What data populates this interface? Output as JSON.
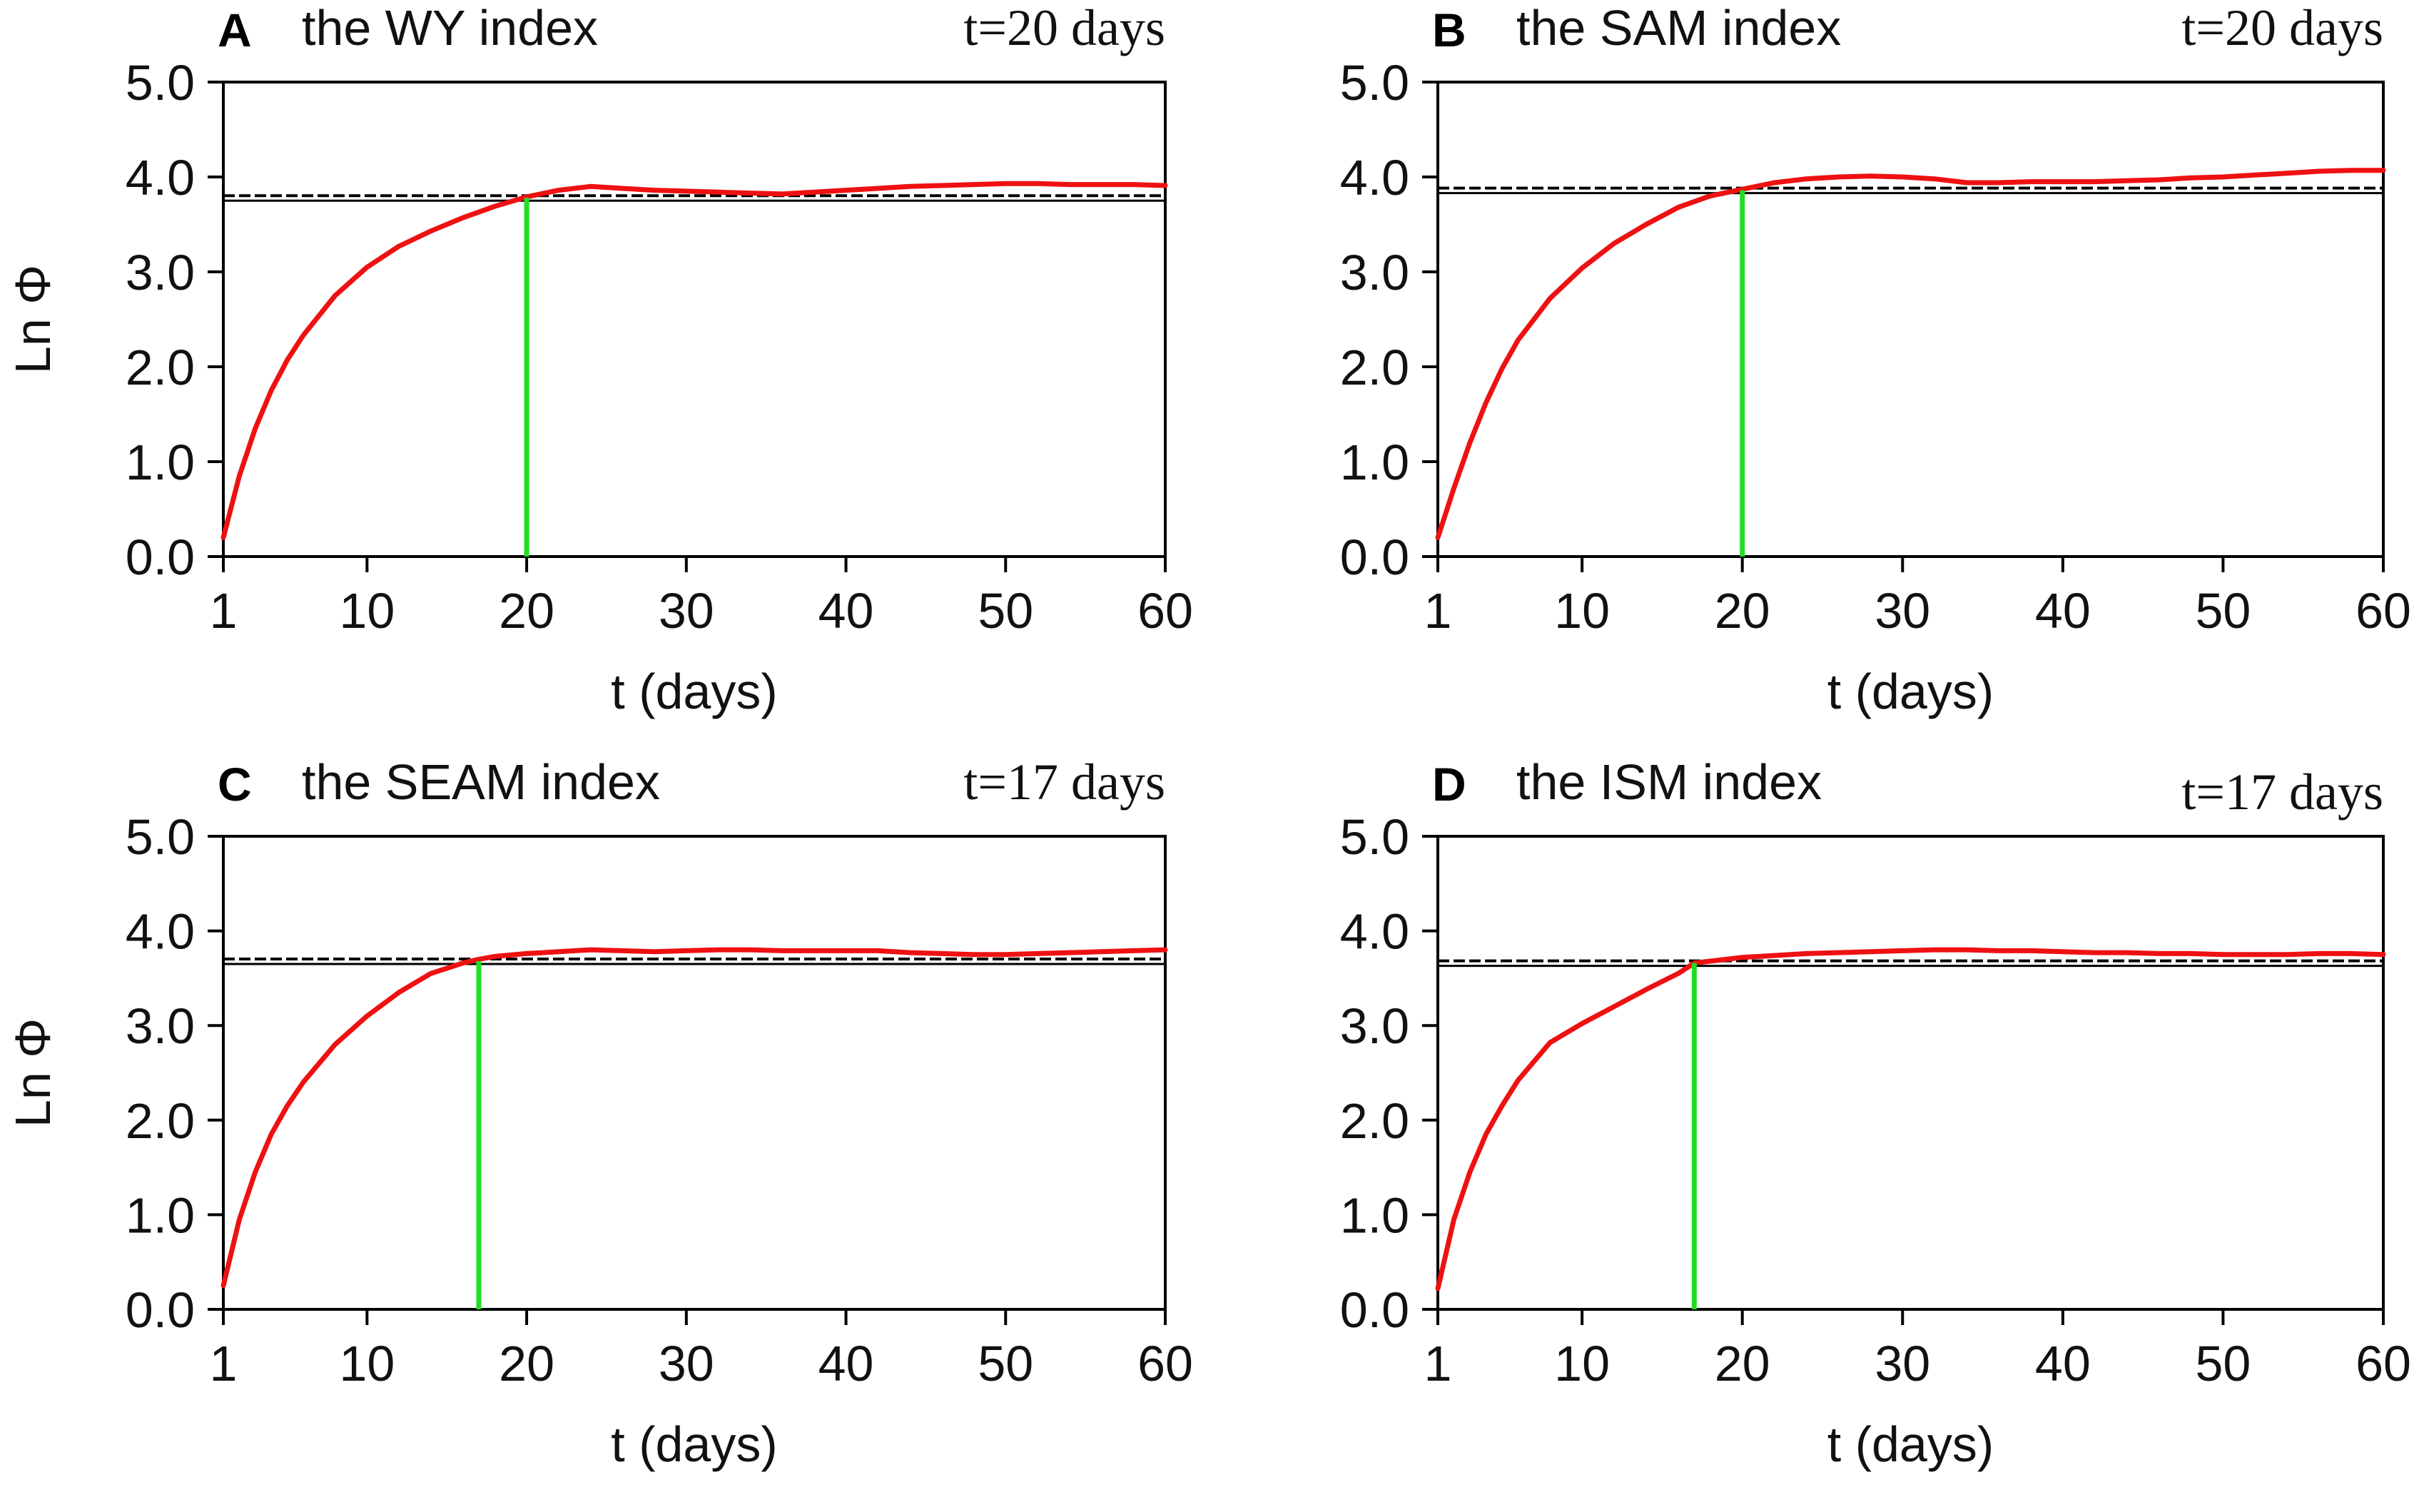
{
  "chart_data": [
    {
      "type": "line",
      "panel": "A",
      "title": "the WY index",
      "annotation": "t=20 days",
      "xlabel": "t (days)",
      "ylabel": "Ln Φ",
      "xlim": [
        1,
        60
      ],
      "ylim": [
        0,
        5
      ],
      "xticks": [
        1,
        10,
        20,
        30,
        40,
        50,
        60
      ],
      "xtick_labels": [
        "1",
        "10",
        "20",
        "30",
        "40",
        "50",
        "60"
      ],
      "yticks": [
        0,
        1,
        2,
        3,
        4,
        5
      ],
      "ytick_labels": [
        "0.0",
        "1.0",
        "2.0",
        "3.0",
        "4.0",
        "5.0"
      ],
      "threshold": 3.78,
      "marker_t": 20,
      "series": [
        {
          "name": "Ln Φ",
          "color": "#ee1111",
          "x": [
            1,
            2,
            3,
            4,
            5,
            6,
            8,
            10,
            12,
            14,
            16,
            18,
            20,
            22,
            24,
            26,
            28,
            30,
            32,
            34,
            36,
            38,
            40,
            42,
            44,
            46,
            48,
            50,
            52,
            54,
            56,
            58,
            60
          ],
          "y": [
            0.2,
            0.85,
            1.35,
            1.75,
            2.07,
            2.33,
            2.75,
            3.05,
            3.27,
            3.43,
            3.57,
            3.69,
            3.79,
            3.86,
            3.9,
            3.88,
            3.86,
            3.85,
            3.84,
            3.83,
            3.82,
            3.84,
            3.86,
            3.88,
            3.9,
            3.91,
            3.92,
            3.93,
            3.93,
            3.92,
            3.92,
            3.92,
            3.91
          ]
        }
      ],
      "vline_color": "#22dd22",
      "hline_color": "#000000"
    },
    {
      "type": "line",
      "panel": "B",
      "title": "the SAM index",
      "annotation": "t=20 days",
      "xlabel": "t (days)",
      "ylabel": "",
      "xlim": [
        1,
        60
      ],
      "ylim": [
        0,
        5
      ],
      "xticks": [
        1,
        10,
        20,
        30,
        40,
        50,
        60
      ],
      "xtick_labels": [
        "1",
        "10",
        "20",
        "30",
        "40",
        "50",
        "60"
      ],
      "yticks": [
        0,
        1,
        2,
        3,
        4,
        5
      ],
      "ytick_labels": [
        "0.0",
        "1.0",
        "2.0",
        "3.0",
        "4.0",
        "5.0"
      ],
      "threshold": 3.86,
      "marker_t": 20,
      "series": [
        {
          "name": "Ln Φ",
          "color": "#ee1111",
          "x": [
            1,
            2,
            3,
            4,
            5,
            6,
            8,
            10,
            12,
            14,
            16,
            18,
            20,
            22,
            24,
            26,
            28,
            30,
            32,
            34,
            36,
            38,
            40,
            42,
            44,
            46,
            48,
            50,
            52,
            54,
            56,
            58,
            60
          ],
          "y": [
            0.2,
            0.72,
            1.2,
            1.62,
            1.98,
            2.28,
            2.72,
            3.04,
            3.3,
            3.5,
            3.68,
            3.8,
            3.87,
            3.94,
            3.98,
            4.0,
            4.01,
            4.0,
            3.98,
            3.94,
            3.94,
            3.95,
            3.95,
            3.95,
            3.96,
            3.97,
            3.99,
            4.0,
            4.02,
            4.04,
            4.06,
            4.07,
            4.07
          ]
        }
      ],
      "vline_color": "#22dd22",
      "hline_color": "#000000"
    },
    {
      "type": "line",
      "panel": "C",
      "title": "the SEAM index",
      "annotation": "t=17 days",
      "xlabel": "t (days)",
      "ylabel": "Ln Φ",
      "xlim": [
        1,
        60
      ],
      "ylim": [
        0,
        5
      ],
      "xticks": [
        1,
        10,
        20,
        30,
        40,
        50,
        60
      ],
      "xtick_labels": [
        "1",
        "10",
        "20",
        "30",
        "40",
        "50",
        "60"
      ],
      "yticks": [
        0,
        1,
        2,
        3,
        4,
        5
      ],
      "ytick_labels": [
        "0.0",
        "1.0",
        "2.0",
        "3.0",
        "4.0",
        "5.0"
      ],
      "threshold": 3.68,
      "marker_t": 17,
      "series": [
        {
          "name": "Ln Φ",
          "color": "#ee1111",
          "x": [
            1,
            2,
            3,
            4,
            5,
            6,
            8,
            10,
            12,
            14,
            16,
            17,
            18,
            20,
            22,
            24,
            26,
            28,
            30,
            32,
            34,
            36,
            38,
            40,
            42,
            44,
            46,
            48,
            50,
            52,
            54,
            56,
            58,
            60
          ],
          "y": [
            0.25,
            0.95,
            1.45,
            1.85,
            2.15,
            2.4,
            2.8,
            3.1,
            3.35,
            3.55,
            3.66,
            3.7,
            3.73,
            3.76,
            3.78,
            3.8,
            3.79,
            3.78,
            3.79,
            3.8,
            3.8,
            3.79,
            3.79,
            3.79,
            3.79,
            3.77,
            3.76,
            3.75,
            3.75,
            3.76,
            3.77,
            3.78,
            3.79,
            3.8
          ]
        }
      ],
      "vline_color": "#22dd22",
      "hline_color": "#000000"
    },
    {
      "type": "line",
      "panel": "D",
      "title": "the ISM index",
      "annotation": "t=17 days",
      "xlabel": "t (days)",
      "ylabel": "",
      "xlim": [
        1,
        60
      ],
      "ylim": [
        0,
        5
      ],
      "xticks": [
        1,
        10,
        20,
        30,
        40,
        50,
        60
      ],
      "xtick_labels": [
        "1",
        "10",
        "20",
        "30",
        "40",
        "50",
        "60"
      ],
      "yticks": [
        0,
        1,
        2,
        3,
        4,
        5
      ],
      "ytick_labels": [
        "0.0",
        "1.0",
        "2.0",
        "3.0",
        "4.0",
        "5.0"
      ],
      "threshold": 3.66,
      "marker_t": 17,
      "series": [
        {
          "name": "Ln Φ",
          "color": "#ee1111",
          "x": [
            1,
            2,
            3,
            4,
            5,
            6,
            8,
            10,
            12,
            14,
            16,
            17,
            18,
            20,
            22,
            24,
            26,
            28,
            30,
            32,
            34,
            36,
            38,
            40,
            42,
            44,
            46,
            48,
            50,
            52,
            54,
            56,
            58,
            60
          ],
          "y": [
            0.22,
            0.95,
            1.45,
            1.85,
            2.15,
            2.42,
            2.82,
            3.02,
            3.2,
            3.38,
            3.55,
            3.66,
            3.68,
            3.72,
            3.74,
            3.76,
            3.77,
            3.78,
            3.79,
            3.8,
            3.8,
            3.79,
            3.79,
            3.78,
            3.77,
            3.77,
            3.76,
            3.76,
            3.75,
            3.75,
            3.75,
            3.76,
            3.76,
            3.75
          ]
        }
      ],
      "vline_color": "#22dd22",
      "hline_color": "#000000"
    }
  ]
}
